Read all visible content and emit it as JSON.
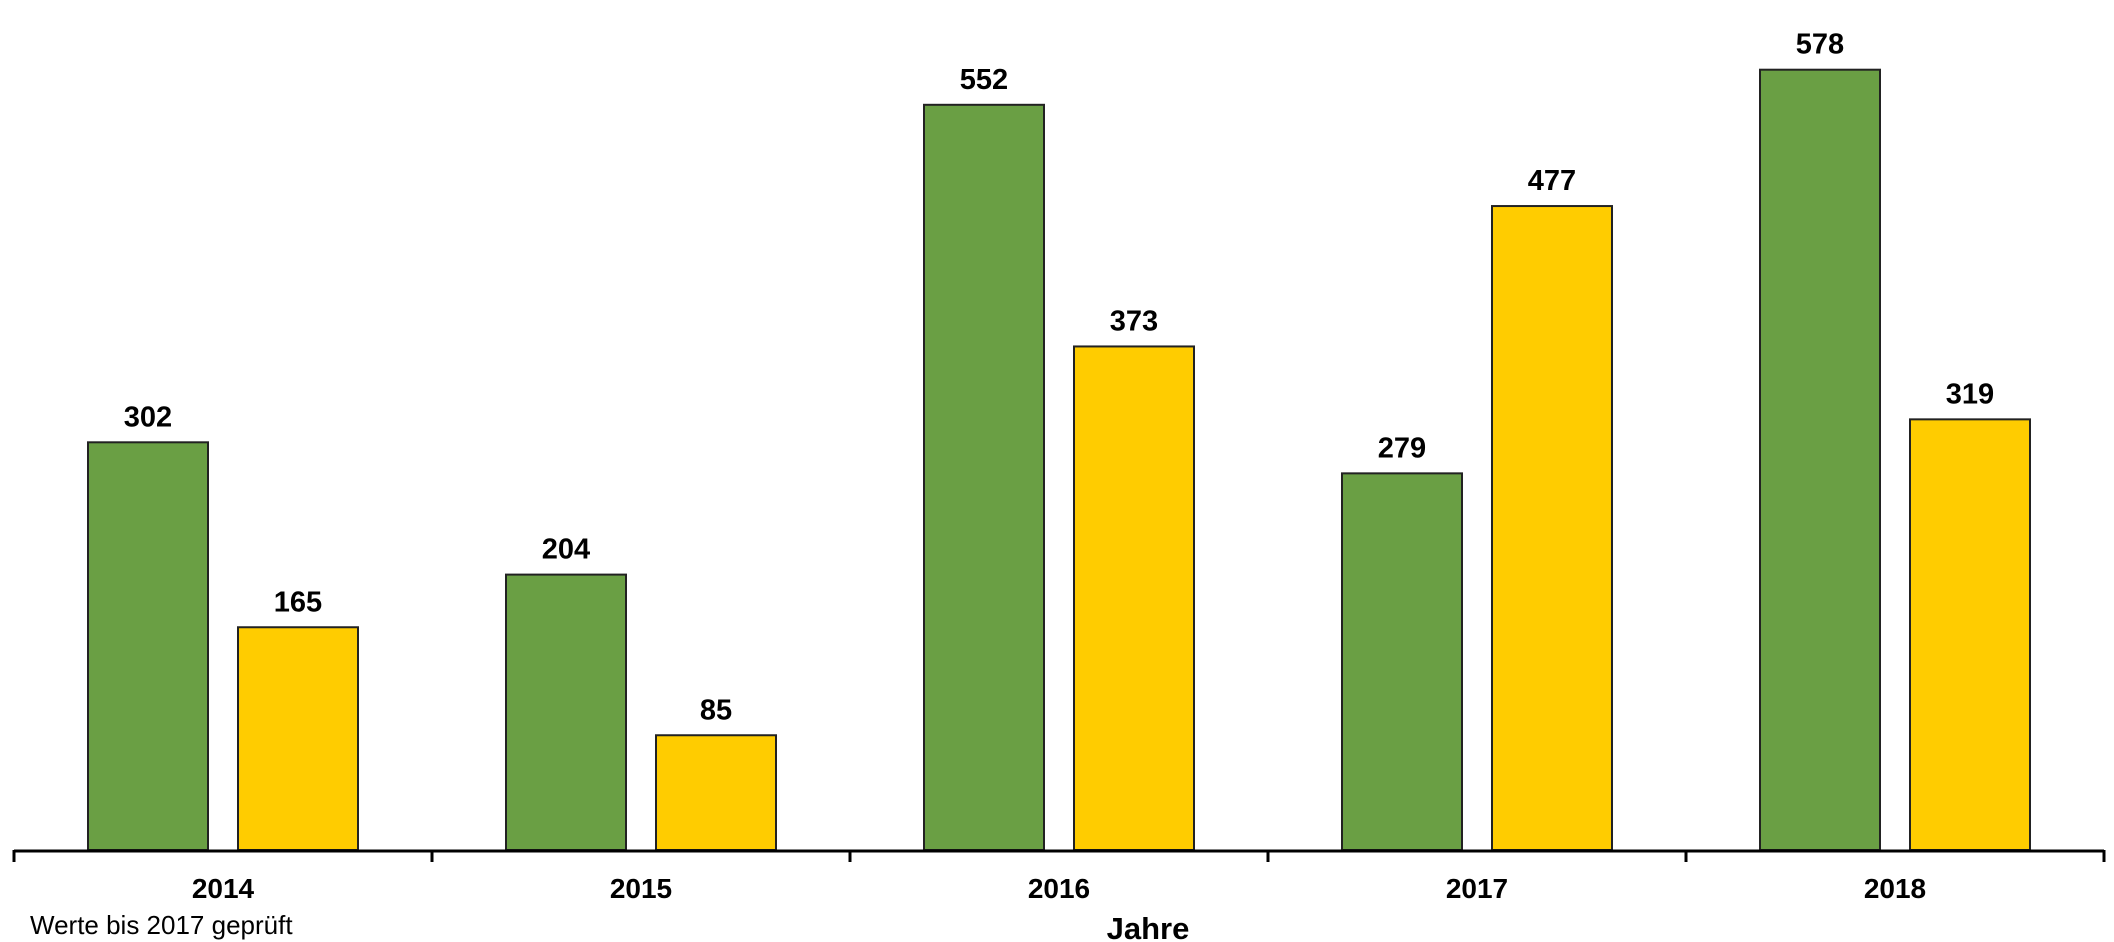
{
  "chart_data": {
    "type": "bar",
    "categories": [
      "2014",
      "2015",
      "2016",
      "2017",
      "2018"
    ],
    "series": [
      {
        "values": [
          302,
          204,
          552,
          279,
          578
        ],
        "color": "#6a9f44"
      },
      {
        "values": [
          165,
          85,
          373,
          477,
          319
        ],
        "color": "#ffcc00"
      }
    ],
    "xlabel": "Jahre",
    "ylabel": "",
    "ylim": [
      0,
      600
    ],
    "value_labels": true,
    "grid": false,
    "legend": "none"
  },
  "footnote": "Werte bis 2017 geprüft"
}
